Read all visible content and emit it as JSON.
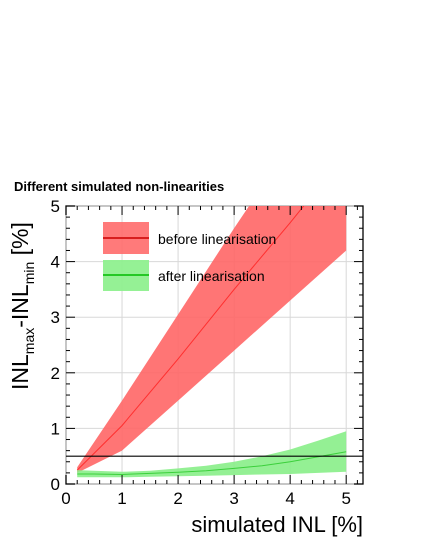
{
  "chart_data": {
    "type": "area",
    "title": "Different simulated non-linearities",
    "xlabel": "simulated INL [%]",
    "ylabel": {
      "main": "INL",
      "sub1": "max",
      "mid": "-INL",
      "sub2": "min",
      "suffix": " [%]"
    },
    "xlim": [
      0,
      5.3
    ],
    "ylim": [
      0,
      5
    ],
    "x_ticks": [
      0,
      1,
      2,
      3,
      4,
      5
    ],
    "y_ticks": [
      0,
      1,
      2,
      3,
      4,
      5
    ],
    "grid": true,
    "legend_position": "top-left",
    "reference_line_y": 0.5,
    "series": [
      {
        "name": "before linearisation",
        "color": "#ff0000",
        "fill_color": "#ff6666",
        "x": [
          0.2,
          1,
          2,
          3,
          4,
          5
        ],
        "y_low": [
          0.2,
          0.6,
          1.5,
          2.4,
          3.3,
          4.2
        ],
        "y_high": [
          0.3,
          1.5,
          3.05,
          4.6,
          6.1,
          7.7
        ],
        "y_center": [
          0.25,
          1.05,
          2.25,
          3.5,
          4.7,
          5.95
        ]
      },
      {
        "name": "after linearisation",
        "color": "#00bb00",
        "fill_color": "#88ee88",
        "x": [
          0.2,
          0.5,
          1,
          1.5,
          2,
          2.5,
          3,
          3.5,
          4,
          4.5,
          5
        ],
        "y_low": [
          0.12,
          0.12,
          0.12,
          0.13,
          0.14,
          0.15,
          0.16,
          0.17,
          0.18,
          0.2,
          0.22
        ],
        "y_high": [
          0.25,
          0.24,
          0.22,
          0.24,
          0.28,
          0.33,
          0.4,
          0.5,
          0.62,
          0.78,
          0.95
        ],
        "y_center": [
          0.18,
          0.18,
          0.17,
          0.19,
          0.21,
          0.24,
          0.28,
          0.33,
          0.4,
          0.49,
          0.58
        ]
      }
    ]
  }
}
